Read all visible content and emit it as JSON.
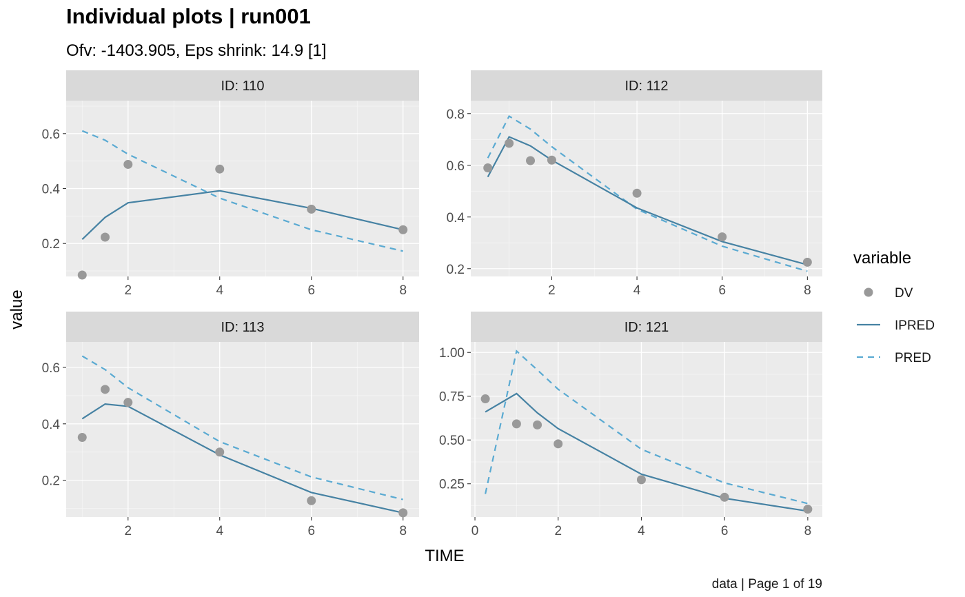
{
  "header": {
    "title": "Individual plots | run001",
    "subtitle": "Ofv: -1403.905, Eps shrink: 14.9 [1]"
  },
  "axes": {
    "x_title": "TIME",
    "y_title": "value"
  },
  "legend": {
    "title": "variable",
    "items": [
      {
        "label": "DV",
        "kind": "point"
      },
      {
        "label": "IPRED",
        "kind": "solid"
      },
      {
        "label": "PRED",
        "kind": "dashed"
      }
    ]
  },
  "caption": "data | Page 1 of 19",
  "colors": {
    "dv": "#999999",
    "ipred": "#4682A3",
    "pred": "#5AAAD2",
    "strip": "#D9D9D9",
    "panel": "#EBEBEB"
  },
  "chart_data": {
    "type": "line",
    "facets": [
      {
        "strip": "ID: 110",
        "xlim": [
          0.65,
          8.35
        ],
        "ylim": [
          0.08,
          0.72
        ],
        "x_ticks": [
          2,
          4,
          6,
          8
        ],
        "x_tick_labels": [
          "2",
          "4",
          "6",
          "8"
        ],
        "y_ticks": [
          0.2,
          0.4,
          0.6
        ],
        "y_tick_labels": [
          "0.2",
          "0.4",
          "0.6"
        ],
        "series": [
          {
            "name": "DV",
            "x": [
              1,
              1.5,
              2,
              4,
              6,
              8
            ],
            "values": [
              0.085,
              0.223,
              0.488,
              0.471,
              0.325,
              0.25
            ]
          },
          {
            "name": "IPRED",
            "x": [
              1,
              1.5,
              2,
              4,
              6,
              8
            ],
            "values": [
              0.215,
              0.295,
              0.348,
              0.392,
              0.328,
              0.25
            ]
          },
          {
            "name": "PRED",
            "x": [
              1,
              1.5,
              2,
              4,
              6,
              8
            ],
            "values": [
              0.61,
              0.576,
              0.525,
              0.365,
              0.25,
              0.172
            ]
          }
        ]
      },
      {
        "strip": "ID: 112",
        "xlim": [
          0.1,
          8.35
        ],
        "ylim": [
          0.17,
          0.85
        ],
        "x_ticks": [
          2,
          4,
          6,
          8
        ],
        "x_tick_labels": [
          "2",
          "4",
          "6",
          "8"
        ],
        "y_ticks": [
          0.2,
          0.4,
          0.6,
          0.8
        ],
        "y_tick_labels": [
          "0.2",
          "0.4",
          "0.6",
          "0.8"
        ],
        "series": [
          {
            "name": "DV",
            "x": [
              0.5,
              1,
              1.5,
              2,
              4,
              6,
              8
            ],
            "values": [
              0.59,
              0.685,
              0.618,
              0.62,
              0.492,
              0.323,
              0.225
            ]
          },
          {
            "name": "IPRED",
            "x": [
              0.5,
              1,
              1.5,
              2,
              4,
              6,
              8
            ],
            "values": [
              0.555,
              0.71,
              0.675,
              0.62,
              0.435,
              0.305,
              0.215
            ]
          },
          {
            "name": "PRED",
            "x": [
              0.5,
              1,
              1.5,
              2,
              4,
              6,
              8
            ],
            "values": [
              0.628,
              0.79,
              0.74,
              0.672,
              0.43,
              0.287,
              0.19
            ]
          }
        ]
      },
      {
        "strip": "ID: 113",
        "xlim": [
          0.65,
          8.35
        ],
        "ylim": [
          0.07,
          0.69
        ],
        "x_ticks": [
          2,
          4,
          6,
          8
        ],
        "x_tick_labels": [
          "2",
          "4",
          "6",
          "8"
        ],
        "y_ticks": [
          0.2,
          0.4,
          0.6
        ],
        "y_tick_labels": [
          "0.2",
          "0.4",
          "0.6"
        ],
        "series": [
          {
            "name": "DV",
            "x": [
              1,
              1.5,
              2,
              4,
              6,
              8
            ],
            "values": [
              0.352,
              0.522,
              0.476,
              0.3,
              0.128,
              0.085
            ]
          },
          {
            "name": "IPRED",
            "x": [
              1,
              1.5,
              2,
              4,
              6,
              8
            ],
            "values": [
              0.418,
              0.47,
              0.462,
              0.29,
              0.157,
              0.085
            ]
          },
          {
            "name": "PRED",
            "x": [
              1,
              1.5,
              2,
              4,
              6,
              8
            ],
            "values": [
              0.64,
              0.592,
              0.528,
              0.337,
              0.212,
              0.132
            ]
          }
        ]
      },
      {
        "strip": "ID: 121",
        "xlim": [
          -0.1,
          8.35
        ],
        "ylim": [
          0.06,
          1.06
        ],
        "x_ticks": [
          0,
          2,
          4,
          6,
          8
        ],
        "x_tick_labels": [
          "0",
          "2",
          "4",
          "6",
          "8"
        ],
        "y_ticks": [
          0.25,
          0.5,
          0.75,
          1.0
        ],
        "y_tick_labels": [
          "0.25",
          "0.50",
          "0.75",
          "1.00"
        ],
        "series": [
          {
            "name": "DV",
            "x": [
              0.25,
              1,
              1.5,
              2,
              4,
              6,
              8
            ],
            "values": [
              0.735,
              0.592,
              0.586,
              0.478,
              0.273,
              0.173,
              0.105
            ]
          },
          {
            "name": "IPRED",
            "x": [
              0.25,
              1,
              1.5,
              2,
              4,
              6,
              8
            ],
            "values": [
              0.66,
              0.765,
              0.655,
              0.565,
              0.305,
              0.167,
              0.094
            ]
          },
          {
            "name": "PRED",
            "x": [
              0.25,
              1,
              1.5,
              2,
              4,
              6,
              8
            ],
            "values": [
              0.192,
              1.008,
              0.9,
              0.79,
              0.447,
              0.255,
              0.137
            ]
          }
        ]
      }
    ]
  }
}
